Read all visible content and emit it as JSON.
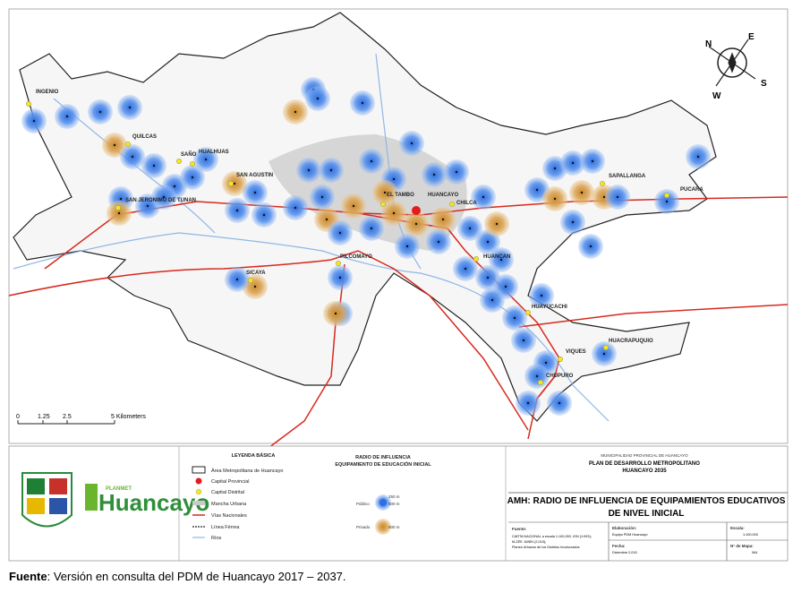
{
  "map": {
    "places": [
      "INGENIO",
      "QUILCAS",
      "SAÑO",
      "HUALHUAS",
      "SAN AGUSTIN",
      "SAN JERONIMO DE TUNAN",
      "EL TAMBO",
      "HUANCAYO",
      "CHILCA",
      "SAPALLANGA",
      "PUCARA",
      "SICAYA",
      "PILCOMAYO",
      "HUANCAN",
      "HUAYUCACHI",
      "VIQUES",
      "HUACRAPUQUIO",
      "CHUPURO"
    ],
    "scale_labels": [
      "0",
      "1.25",
      "2.5",
      "5 Kilometers"
    ],
    "compass": [
      "N",
      "E",
      "S",
      "W"
    ]
  },
  "legend": {
    "title": "LEYENDA BÁSICA",
    "items": [
      "Área Metropolitana de Huancayo",
      "Capital Provincial",
      "Capital Distrital",
      "Mancha Urbana",
      "Vías Nacionales",
      "Línea Férrea",
      "Ríos"
    ],
    "radius_title": "RADIO DE INFLUENCIA",
    "radius_subtitle": "EQUIPAMIENTO DE EDUCACIÓN INICIAL",
    "r250": "250 m",
    "r500_public": "500 m",
    "public_label": "Público",
    "private_label": "Privado",
    "r500_private": "500 m"
  },
  "logo": {
    "small": "PLANMET",
    "name": "Huancayo"
  },
  "title_block": {
    "org": "MUNICIPALIDAD PROVINCIAL DE HUANCAYO",
    "plan": "PLAN DE DESARROLLO METROPOLITANO",
    "year": "HUANCAYO 2035",
    "title_1": "AMH: RADIO DE INFLUENCIA DE EQUIPAMIENTOS EDUCATIVOS",
    "title_2": "DE NIVEL INICIAL",
    "source_label": "Fuente:",
    "source_lines": [
      "CARTA NACIONAL a escala 1:100,000, IGN (1:993);",
      "M-ZEE JUNÍN (2,015);",
      "Planes Urbanos de los Distritos Involucrados"
    ],
    "made_label": "Elaboración:",
    "made_by": "Equipo PDM Huancayo",
    "date_label": "Fecha:",
    "date": "Diciembre 2,015",
    "scale_label": "Escala:",
    "scale": "1:100,000",
    "map_no_label": "N° de Mapa:",
    "map_no": "064"
  },
  "caption": {
    "bold": "Fuente",
    "text": ": Versión en consulta del PDM de Huancayo 2017 – 2037."
  }
}
